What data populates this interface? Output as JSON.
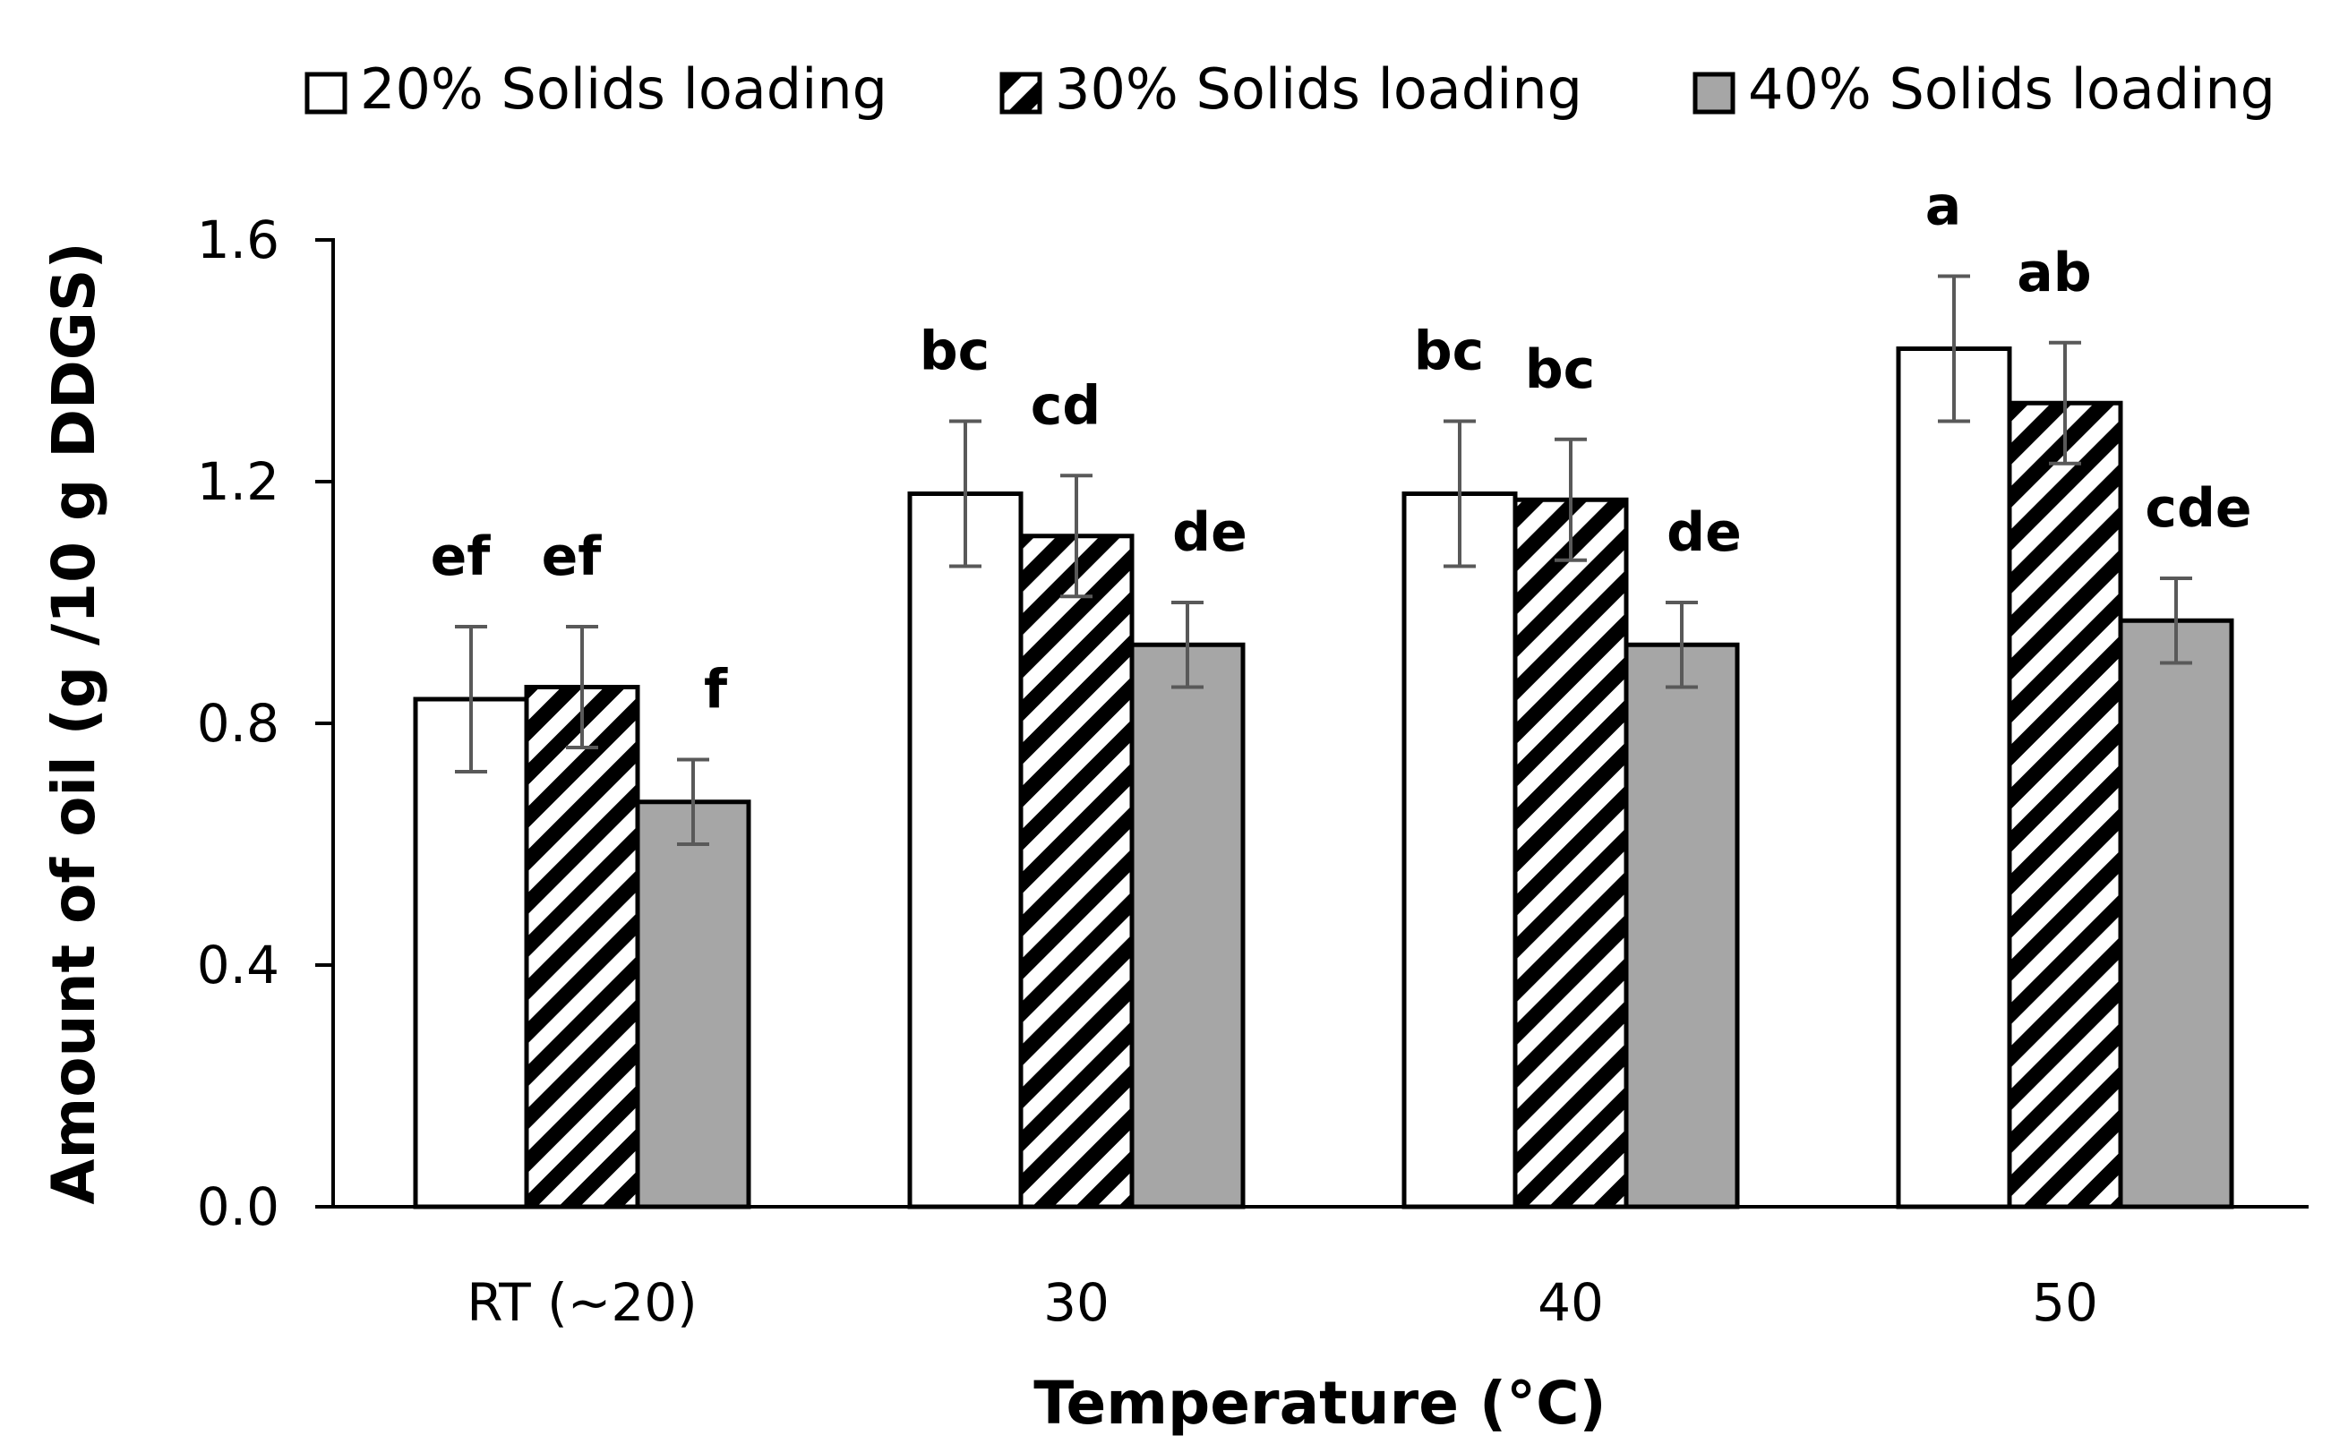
{
  "chart_data": {
    "type": "bar",
    "title": "",
    "xlabel": "Temperature (°C)",
    "ylabel": "Amount of oil (g /10 g DDGS)",
    "categories": [
      "RT (~20)",
      "30",
      "40",
      "50"
    ],
    "ylim": [
      0.0,
      1.6
    ],
    "yticks": [
      "0.0",
      "0.4",
      "0.8",
      "1.2",
      "1.6"
    ],
    "legend_position": "top",
    "grid": false,
    "series": [
      {
        "name": "20% Solids loading",
        "pattern": "white",
        "values": [
          0.84,
          1.18,
          1.18,
          1.42
        ],
        "errors": [
          0.12,
          0.12,
          0.12,
          0.12
        ],
        "labels": [
          "ef",
          "bc",
          "bc",
          "a"
        ]
      },
      {
        "name": "30% Solids loading",
        "pattern": "hatched",
        "values": [
          0.86,
          1.11,
          1.17,
          1.33
        ],
        "errors": [
          0.1,
          0.1,
          0.1,
          0.1
        ],
        "labels": [
          "ef",
          "cd",
          "bc",
          "ab"
        ]
      },
      {
        "name": "40% Solids loading",
        "pattern": "gray",
        "values": [
          0.67,
          0.93,
          0.93,
          0.97
        ],
        "errors": [
          0.07,
          0.07,
          0.07,
          0.07
        ],
        "labels": [
          "f",
          "de",
          "de",
          "cde"
        ]
      }
    ],
    "colors": {
      "axis": "#000000",
      "bar_outline": "#000000",
      "white_fill": "#ffffff",
      "gray_fill": "#a6a6a6",
      "hatch": "#000000",
      "error_bar": "#595959"
    }
  }
}
